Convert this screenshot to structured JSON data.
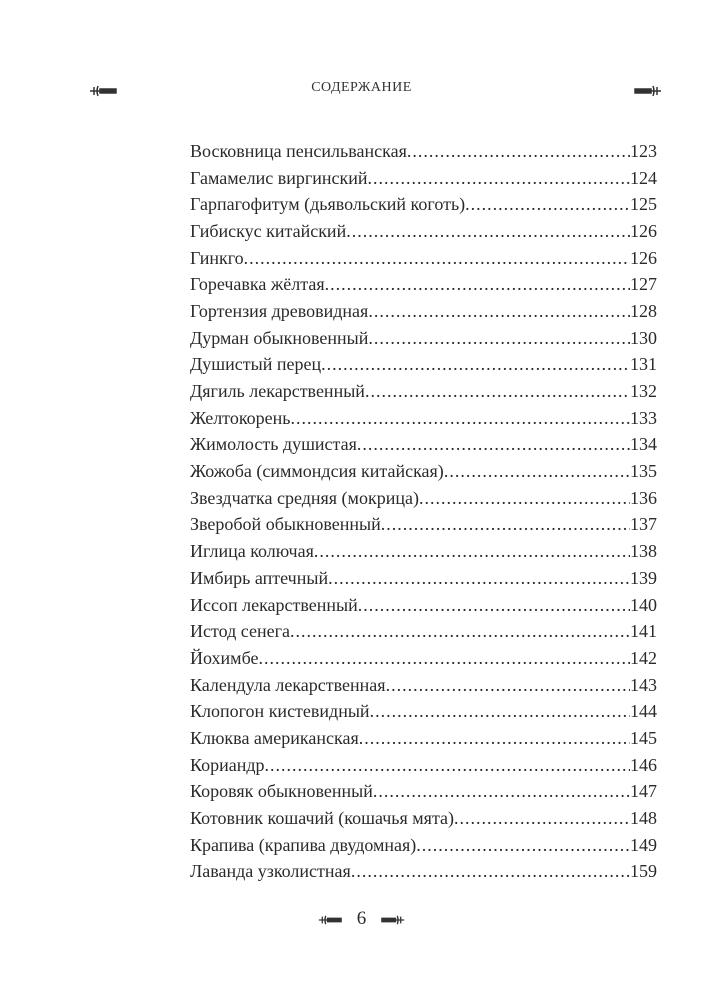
{
  "header": {
    "title": "СОДЕРЖАНИЕ"
  },
  "toc": [
    {
      "title": "Восковница пенсильванская ",
      "page": "123"
    },
    {
      "title": "Гамамелис виргинский",
      "page": "124"
    },
    {
      "title": "Гарпагофитум (дьявольский коготь)",
      "page": "125"
    },
    {
      "title": "Гибискус китайский",
      "page": "126"
    },
    {
      "title": "Гинкго",
      "page": "126"
    },
    {
      "title": "Горечавка жёлтая",
      "page": "127"
    },
    {
      "title": "Гортензия древовидная",
      "page": "128"
    },
    {
      "title": "Дурман обыкновенный",
      "page": "130"
    },
    {
      "title": "Душистый перец",
      "page": "131"
    },
    {
      "title": "Дягиль лекарственный",
      "page": "132"
    },
    {
      "title": "Желтокорень",
      "page": "133"
    },
    {
      "title": "Жимолость душистая",
      "page": "134"
    },
    {
      "title": "Жожоба (симмондсия китайская)",
      "page": "135"
    },
    {
      "title": "Звездчатка средняя (мокрица)",
      "page": "136"
    },
    {
      "title": "Зверобой обыкновенный",
      "page": "137"
    },
    {
      "title": "Иглица колючая",
      "page": "138"
    },
    {
      "title": "Имбирь аптечный",
      "page": "139"
    },
    {
      "title": "Иссоп лекарственный",
      "page": "140"
    },
    {
      "title": "Истод сенега",
      "page": "141"
    },
    {
      "title": "Йохимбе",
      "page": "142"
    },
    {
      "title": "Календула лекарственная",
      "page": "143"
    },
    {
      "title": "Клопогон кистевидный",
      "page": "144"
    },
    {
      "title": "Клюква американская",
      "page": "145"
    },
    {
      "title": "Кориандр",
      "page": "146"
    },
    {
      "title": "Коровяк обыкновенный",
      "page": "147"
    },
    {
      "title": "Котовник кошачий (кошачья мята)",
      "page": "148"
    },
    {
      "title": "Крапива (крапива двудомная)",
      "page": "149"
    },
    {
      "title": "Лаванда узколистная",
      "page": "159"
    }
  ],
  "footer": {
    "page_number": "6"
  }
}
